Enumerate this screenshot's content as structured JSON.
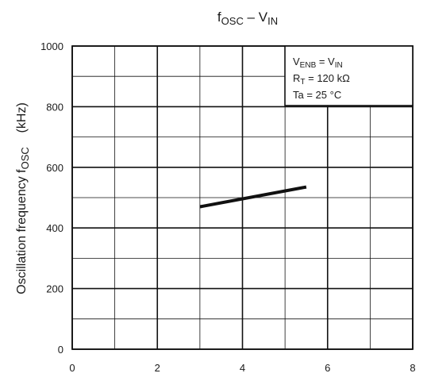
{
  "chart_data": {
    "type": "line",
    "title": {
      "main": "f",
      "main_sub": "OSC",
      "sep": " – V",
      "sep_sub": "IN"
    },
    "ylabel": {
      "prefix": "Oscillation frequency  f",
      "sub": "OSC",
      "unit": "(kHz)"
    },
    "xlabel": "",
    "xlim": [
      0,
      8
    ],
    "ylim": [
      0,
      1000
    ],
    "x_ticks": [
      "0",
      "2",
      "4",
      "6",
      "8"
    ],
    "y_ticks": [
      "0",
      "200",
      "400",
      "600",
      "800",
      "1000"
    ],
    "grid": true,
    "conditions": [
      {
        "main": "V",
        "sub": "ENB",
        "rest": " = V",
        "sub2": "IN"
      },
      {
        "main": "R",
        "sub": "T",
        "rest": " = 120 kΩ",
        "sub2": ""
      },
      {
        "main": "Ta = 25 °C",
        "sub": "",
        "rest": "",
        "sub2": ""
      }
    ],
    "series": [
      {
        "x": [
          3.0,
          5.5
        ],
        "y": [
          470,
          535
        ],
        "color": "#111111"
      }
    ]
  }
}
